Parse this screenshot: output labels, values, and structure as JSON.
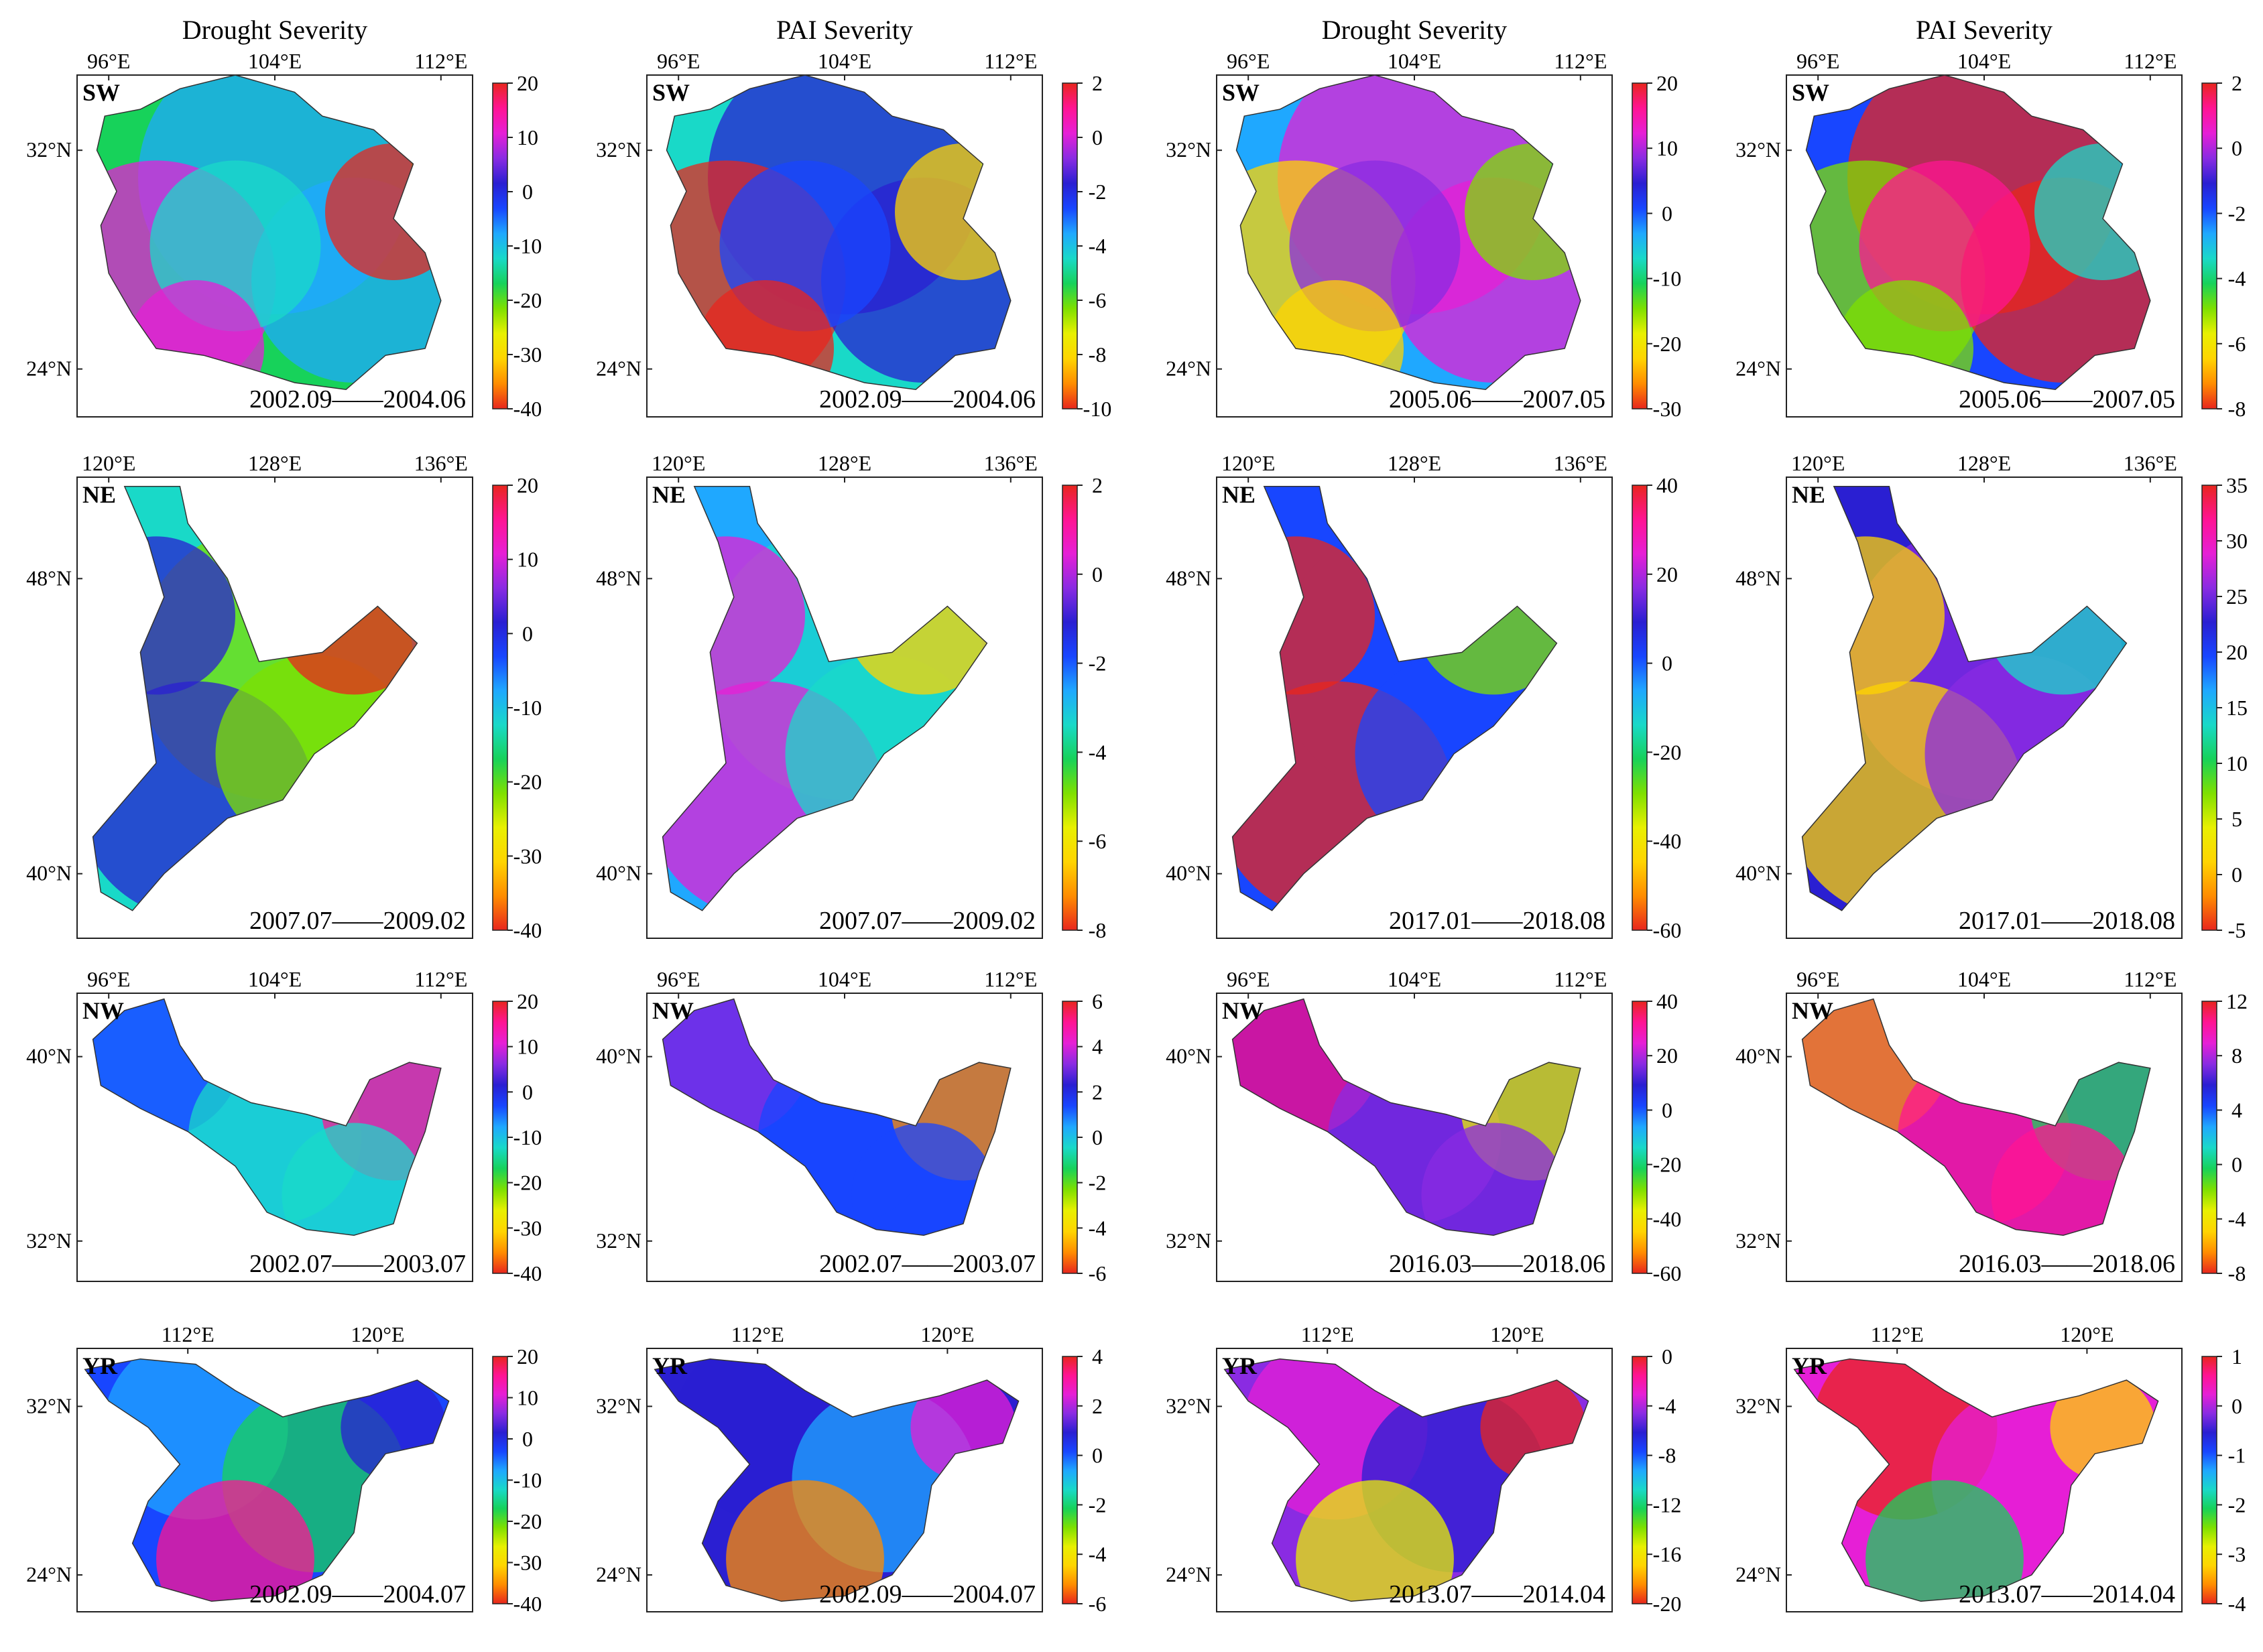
{
  "column_titles": [
    "Drought Severity",
    "PAI Severity",
    "Drought Severity",
    "PAI Severity"
  ],
  "colormap": [
    "#e8261d",
    "#ff8c00",
    "#ffd400",
    "#e8f000",
    "#7ee000",
    "#17d25a",
    "#19d9c8",
    "#1fa8ff",
    "#1846ff",
    "#2a1fd2",
    "#8a2be2",
    "#e61fd6",
    "#ff1493",
    "#e8261d"
  ],
  "rows": [
    {
      "region": "SW",
      "x_ticks": [
        "96°E",
        "104°E",
        "112°E"
      ],
      "y_ticks": [
        "32°N",
        "24°N"
      ],
      "panels": [
        {
          "period_start": "2002.09",
          "period_end": "2004.06",
          "colorbar": [
            "20",
            "10",
            "0",
            "-10",
            "-20",
            "-30",
            "-40"
          ]
        },
        {
          "period_start": "2002.09",
          "period_end": "2004.06",
          "colorbar": [
            "2",
            "0",
            "-2",
            "-4",
            "-6",
            "-8",
            "-10"
          ]
        },
        {
          "period_start": "2005.06",
          "period_end": "2007.05",
          "colorbar": [
            "20",
            "10",
            "0",
            "-10",
            "-20",
            "-30"
          ]
        },
        {
          "period_start": "2005.06",
          "period_end": "2007.05",
          "colorbar": [
            "2",
            "0",
            "-2",
            "-4",
            "-6",
            "-8"
          ]
        }
      ]
    },
    {
      "region": "NE",
      "x_ticks": [
        "120°E",
        "128°E",
        "136°E"
      ],
      "y_ticks": [
        "48°N",
        "40°N"
      ],
      "panels": [
        {
          "period_start": "2007.07",
          "period_end": "2009.02",
          "colorbar": [
            "20",
            "10",
            "0",
            "-10",
            "-20",
            "-30",
            "-40"
          ]
        },
        {
          "period_start": "2007.07",
          "period_end": "2009.02",
          "colorbar": [
            "2",
            "0",
            "-2",
            "-4",
            "-6",
            "-8"
          ]
        },
        {
          "period_start": "2017.01",
          "period_end": "2018.08",
          "colorbar": [
            "40",
            "20",
            "0",
            "-20",
            "-40",
            "-60"
          ]
        },
        {
          "period_start": "2017.01",
          "period_end": "2018.08",
          "colorbar": [
            "35",
            "30",
            "25",
            "20",
            "15",
            "10",
            "5",
            "0",
            "-5"
          ]
        }
      ]
    },
    {
      "region": "NW",
      "x_ticks": [
        "96°E",
        "104°E",
        "112°E"
      ],
      "y_ticks": [
        "40°N",
        "32°N"
      ],
      "panels": [
        {
          "period_start": "2002.07",
          "period_end": "2003.07",
          "colorbar": [
            "20",
            "10",
            "0",
            "-10",
            "-20",
            "-30",
            "-40"
          ]
        },
        {
          "period_start": "2002.07",
          "period_end": "2003.07",
          "colorbar": [
            "6",
            "4",
            "2",
            "0",
            "-2",
            "-4",
            "-6"
          ]
        },
        {
          "period_start": "2016.03",
          "period_end": "2018.06",
          "colorbar": [
            "40",
            "20",
            "0",
            "-20",
            "-40",
            "-60"
          ]
        },
        {
          "period_start": "2016.03",
          "period_end": "2018.06",
          "colorbar": [
            "12",
            "8",
            "4",
            "0",
            "-4",
            "-8"
          ]
        }
      ]
    },
    {
      "region": "YR",
      "x_ticks": [
        "112°E",
        "120°E"
      ],
      "y_ticks": [
        "32°N",
        "24°N"
      ],
      "panels": [
        {
          "period_start": "2002.09",
          "period_end": "2004.07",
          "colorbar": [
            "20",
            "10",
            "0",
            "-10",
            "-20",
            "-30",
            "-40"
          ]
        },
        {
          "period_start": "2002.09",
          "period_end": "2004.07",
          "colorbar": [
            "4",
            "2",
            "0",
            "-2",
            "-4",
            "-6"
          ]
        },
        {
          "period_start": "2013.07",
          "period_end": "2014.04",
          "colorbar": [
            "0",
            "-4",
            "-8",
            "-12",
            "-16",
            "-20"
          ]
        },
        {
          "period_start": "2013.07",
          "period_end": "2014.04",
          "colorbar": [
            "1",
            "0",
            "-1",
            "-2",
            "-3",
            "-4"
          ]
        }
      ]
    }
  ]
}
